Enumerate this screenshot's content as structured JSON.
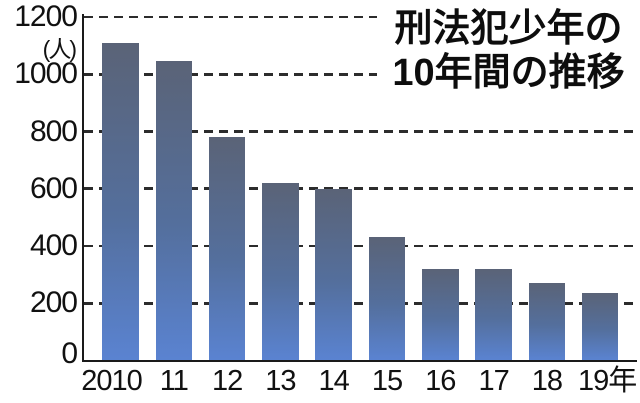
{
  "title": {
    "line1": "刑法犯少年の",
    "line2": "10年間の推移"
  },
  "y_axis": {
    "unit_label": "(人)",
    "tick_labels": [
      "1200",
      "1000",
      "800",
      "600",
      "400",
      "200",
      "0"
    ]
  },
  "x_axis": {
    "tick_labels": [
      "2010",
      "11",
      "12",
      "13",
      "14",
      "15",
      "16",
      "17",
      "18",
      "19年"
    ]
  },
  "chart_data": {
    "type": "bar",
    "title": "刑法犯少年の10年間の推移",
    "categories": [
      "2010",
      "11",
      "12",
      "13",
      "14",
      "15",
      "16",
      "17",
      "18",
      "19年"
    ],
    "values": [
      1110,
      1045,
      780,
      620,
      600,
      430,
      320,
      320,
      270,
      235
    ],
    "xlabel": "",
    "ylabel": "(人)",
    "ylim": [
      0,
      1200
    ],
    "ytick_interval": 200,
    "grid": "horizontal-dashed",
    "legend": "none",
    "colors": {
      "bar_gradient_top": "#5a6377",
      "bar_gradient_mid": "#546f9d",
      "bar_gradient_bottom": "#5a83d1",
      "gridline": "#2c2c2c",
      "axis": "#1a1a1a",
      "text": "#111111",
      "background": "#ffffff"
    }
  }
}
